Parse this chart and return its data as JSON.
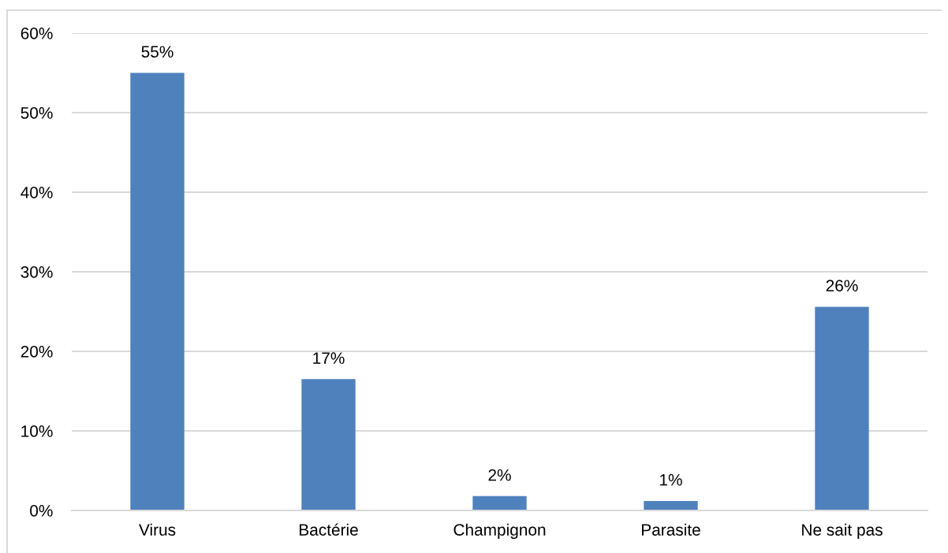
{
  "chart_data": {
    "type": "bar",
    "categories": [
      "Virus",
      "Bactérie",
      "Champignon",
      "Parasite",
      "Ne sait pas"
    ],
    "values": [
      55,
      16.5,
      1.8,
      1.2,
      25.6
    ],
    "value_labels": [
      "55%",
      "17%",
      "2%",
      "1%",
      "26%"
    ],
    "color": "#4f81bd",
    "ylim": [
      0,
      60
    ],
    "yticks": [
      {
        "value": 0,
        "label": "0%"
      },
      {
        "value": 10,
        "label": "10%"
      },
      {
        "value": 20,
        "label": "20%"
      },
      {
        "value": 30,
        "label": "30%"
      },
      {
        "value": 40,
        "label": "40%"
      },
      {
        "value": 50,
        "label": "50%"
      },
      {
        "value": 60,
        "label": "60%"
      }
    ],
    "grid": "y",
    "legend": false
  }
}
